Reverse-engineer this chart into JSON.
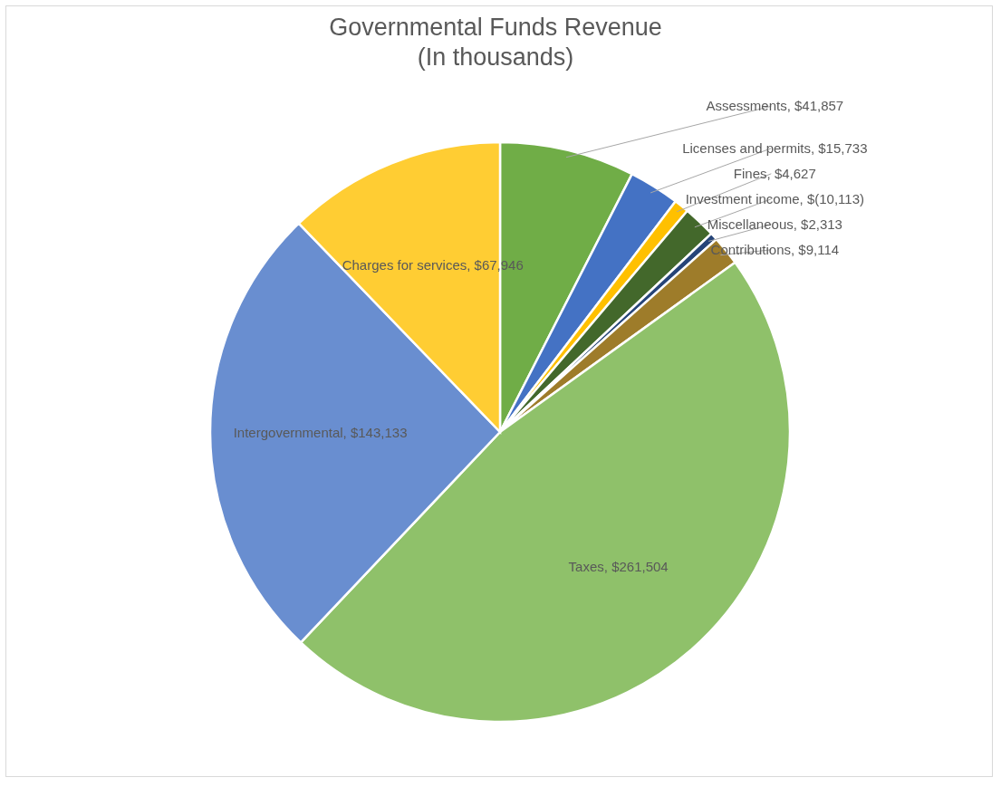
{
  "chart_data": {
    "type": "pie",
    "title": "Governmental Funds Revenue",
    "subtitle": "(In thousands)",
    "categories": [
      "Assessments",
      "Licenses and permits",
      "Fines",
      "Investment income",
      "Miscellaneous",
      "Contributions",
      "Taxes",
      "Intergovernmental",
      "Charges for services"
    ],
    "values": [
      41857,
      15733,
      4627,
      10113,
      2313,
      9114,
      261504,
      143133,
      67946
    ],
    "value_labels": [
      "$41,857",
      "$15,733",
      "$4,627",
      "$(10,113)",
      "$2,313",
      "$9,114",
      "$261,504",
      "$143,133",
      "$67,946"
    ],
    "colors": [
      "#70ad47",
      "#4472c4",
      "#ffc000",
      "#43682b",
      "#264478",
      "#9e7c2a",
      "#8fc16a",
      "#698ed0",
      "#ffcd33"
    ]
  }
}
